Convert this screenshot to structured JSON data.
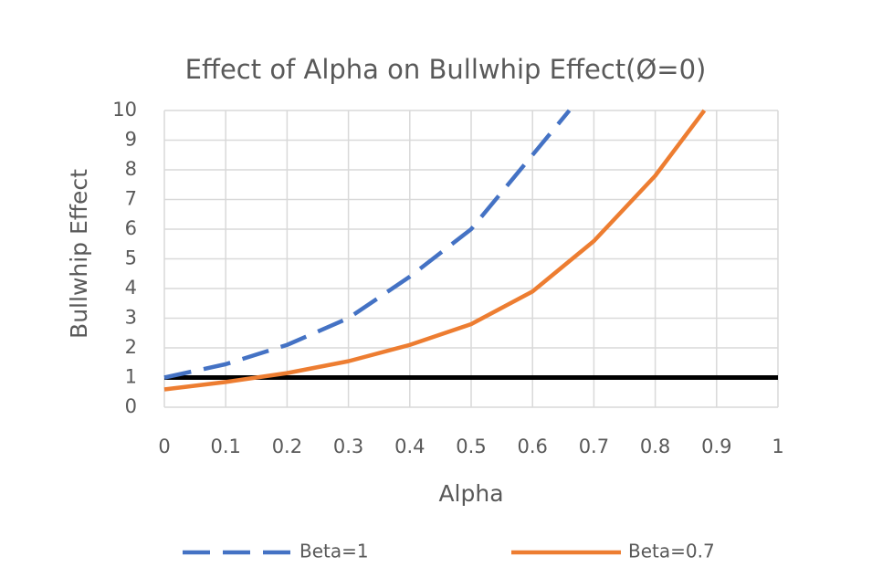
{
  "chart_data": {
    "type": "line",
    "title": "Effect of Alpha on Bullwhip Effect(Ø=0)",
    "xlabel": "Alpha",
    "ylabel": "Bullwhip Effect",
    "series": [
      {
        "name": "Beta=1",
        "color": "#4472c4",
        "dash": true,
        "x": [
          0,
          0.1,
          0.2,
          0.3,
          0.4,
          0.5,
          0.6,
          0.66
        ],
        "values": [
          1.0,
          1.45,
          2.1,
          3.0,
          4.4,
          6.0,
          8.5,
          10
        ]
      },
      {
        "name": "Beta=0.7",
        "color": "#ed7d31",
        "dash": false,
        "x": [
          0,
          0.1,
          0.2,
          0.3,
          0.4,
          0.5,
          0.6,
          0.7,
          0.8,
          0.88
        ],
        "values": [
          0.6,
          0.85,
          1.15,
          1.55,
          2.1,
          2.8,
          3.9,
          5.6,
          7.8,
          10
        ]
      }
    ],
    "reference_lines": [
      {
        "y": 1,
        "color": "#000000"
      }
    ],
    "xlim": [
      0,
      1
    ],
    "xticks": [
      0,
      0.1,
      0.2,
      0.3,
      0.4,
      0.5,
      0.6,
      0.7,
      0.8,
      0.9,
      1
    ],
    "ylim": [
      0,
      10
    ],
    "yticks": [
      0,
      1,
      2,
      3,
      4,
      5,
      6,
      7,
      8,
      9,
      10
    ],
    "grid": true,
    "legend": "bottom"
  }
}
